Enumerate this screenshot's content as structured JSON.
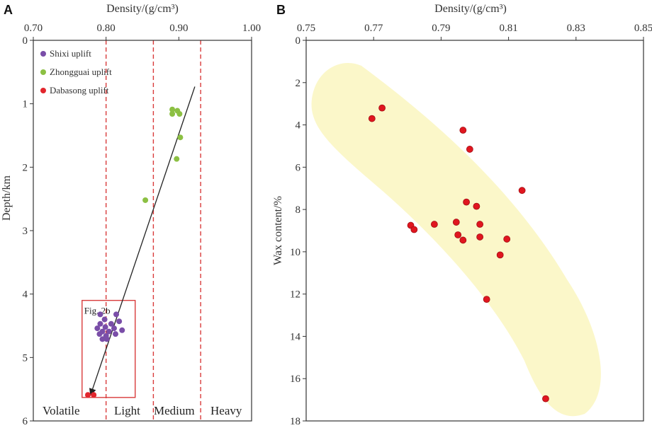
{
  "chart_data": [
    {
      "panel": "A",
      "type": "scatter",
      "xlabel": "Density/(g/cm³)",
      "ylabel": "Depth/km",
      "xlim": [
        0.7,
        1.0
      ],
      "ylim": [
        0,
        6
      ],
      "x_ticks": [
        "0.70",
        "0.80",
        "0.90",
        "1.00"
      ],
      "y_ticks": [
        "0",
        "1",
        "2",
        "3",
        "4",
        "5",
        "6"
      ],
      "density_boundaries": [
        0.8,
        0.865,
        0.93
      ],
      "categories": [
        "Volatile",
        "Light",
        "Medium",
        "Heavy"
      ],
      "trend_arrow": {
        "from": [
          0.922,
          0.73
        ],
        "to": [
          0.779,
          5.58
        ]
      },
      "inset_box": {
        "label": "Fig. 2b",
        "x": [
          0.767,
          0.84
        ],
        "y": [
          4.1,
          5.63
        ]
      },
      "colors": {
        "Shixi uplift": "#7a4ea8",
        "Zhongguai uplift": "#8cc043",
        "Dabasong uplift": "#e2262d",
        "boundary": "#d93b3b"
      },
      "series": [
        {
          "name": "Shixi uplift",
          "color": "#7a4ea8",
          "points": [
            [
              0.792,
              4.32
            ],
            [
              0.814,
              4.32
            ],
            [
              0.798,
              4.4
            ],
            [
              0.818,
              4.43
            ],
            [
              0.792,
              4.47
            ],
            [
              0.807,
              4.47
            ],
            [
              0.799,
              4.52
            ],
            [
              0.788,
              4.54
            ],
            [
              0.811,
              4.54
            ],
            [
              0.822,
              4.57
            ],
            [
              0.795,
              4.59
            ],
            [
              0.804,
              4.59
            ],
            [
              0.791,
              4.63
            ],
            [
              0.813,
              4.63
            ],
            [
              0.8,
              4.66
            ],
            [
              0.795,
              4.71
            ],
            [
              0.801,
              4.71
            ]
          ]
        },
        {
          "name": "Zhongguai uplift",
          "color": "#8cc043",
          "points": [
            [
              0.891,
              1.09
            ],
            [
              0.898,
              1.11
            ],
            [
              0.891,
              1.16
            ],
            [
              0.901,
              1.16
            ],
            [
              0.902,
              1.53
            ],
            [
              0.897,
              1.87
            ],
            [
              0.854,
              2.52
            ]
          ]
        },
        {
          "name": "Dabasong uplift",
          "color": "#e2262d",
          "points": [
            [
              0.775,
              5.59
            ],
            [
              0.783,
              5.59
            ]
          ]
        }
      ]
    },
    {
      "panel": "B",
      "type": "scatter",
      "xlabel": "Density/(g/cm³)",
      "ylabel": "Wax content/%",
      "xlim": [
        0.75,
        0.85
      ],
      "ylim": [
        0,
        18
      ],
      "x_ticks": [
        "0.75",
        "0.77",
        "0.79",
        "0.81",
        "0.83",
        "0.85"
      ],
      "y_ticks": [
        "0",
        "2",
        "4",
        "6",
        "8",
        "10",
        "12",
        "14",
        "16",
        "18"
      ],
      "colors": {
        "points": "#e0161f",
        "envelope": "#fbf7c9"
      },
      "series": [
        {
          "name": "samples",
          "color": "#e0161f",
          "points": [
            [
              0.7725,
              3.2
            ],
            [
              0.7695,
              3.7
            ],
            [
              0.7965,
              4.25
            ],
            [
              0.7985,
              5.15
            ],
            [
              0.814,
              7.1
            ],
            [
              0.7975,
              7.65
            ],
            [
              0.8005,
              7.85
            ],
            [
              0.781,
              8.75
            ],
            [
              0.782,
              8.95
            ],
            [
              0.788,
              8.7
            ],
            [
              0.7945,
              8.6
            ],
            [
              0.8015,
              8.7
            ],
            [
              0.795,
              9.2
            ],
            [
              0.7965,
              9.45
            ],
            [
              0.8015,
              9.3
            ],
            [
              0.8095,
              9.4
            ],
            [
              0.8075,
              10.15
            ],
            [
              0.8035,
              12.25
            ],
            [
              0.821,
              16.95
            ]
          ]
        }
      ]
    }
  ]
}
